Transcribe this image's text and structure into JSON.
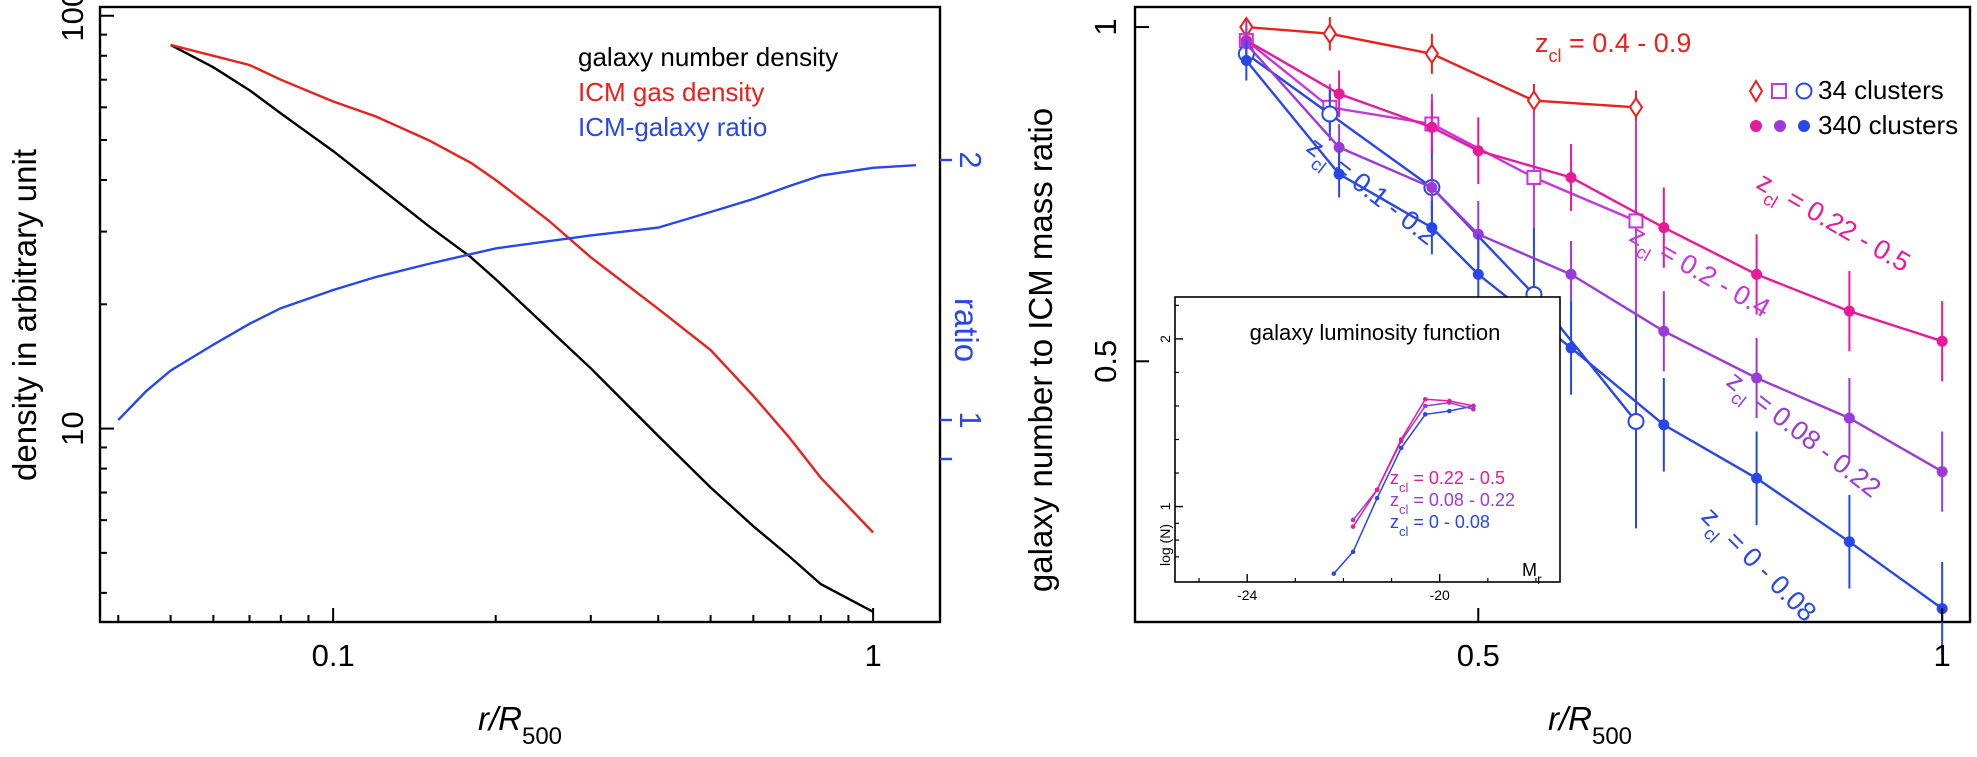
{
  "colors": {
    "black": "#000000",
    "red": "#e8211d",
    "blue": "#2747e8",
    "magenta": "#e8199a",
    "purple": "#9b3ad8",
    "violet": "#c336e0"
  },
  "chart_data": [
    {
      "type": "line",
      "xscale": "log",
      "yscale": "log",
      "xlim": [
        0.037,
        1.33
      ],
      "ylim": [
        3.4,
        105
      ],
      "xlabel": "r/R500",
      "ylabel": "density in arbitrary unit",
      "x_ticks": [
        0.1,
        1
      ],
      "x_tick_labels": [
        "0.1",
        "1"
      ],
      "y_ticks": [
        10,
        100
      ],
      "y_tick_labels": [
        "10",
        "100"
      ],
      "right_axis": {
        "label": "ratio",
        "color": "#2747e8",
        "ticks": [
          1,
          2
        ],
        "tick_labels": [
          "1",
          "2"
        ],
        "note": "ratio axis ticks at 1 and 2 (plus an unlabeled tick below 1)"
      },
      "legend_position": "top-right",
      "series": [
        {
          "name": "galaxy number density",
          "color": "#000000",
          "axis": "left",
          "x": [
            0.05,
            0.06,
            0.07,
            0.08,
            0.1,
            0.12,
            0.15,
            0.18,
            0.2,
            0.25,
            0.3,
            0.4,
            0.5,
            0.6,
            0.7,
            0.8,
            1.0
          ],
          "y": [
            85,
            75,
            66,
            58,
            47,
            39,
            31,
            26,
            23,
            17.5,
            14,
            9.6,
            7.2,
            5.8,
            4.9,
            4.2,
            3.6
          ]
        },
        {
          "name": "ICM gas density",
          "color": "#e8211d",
          "axis": "left",
          "x": [
            0.05,
            0.06,
            0.07,
            0.08,
            0.1,
            0.12,
            0.15,
            0.18,
            0.2,
            0.25,
            0.3,
            0.4,
            0.5,
            0.6,
            0.7,
            0.8,
            1.0
          ],
          "y": [
            85,
            80,
            76,
            70,
            62,
            57,
            50,
            44,
            40,
            32,
            26,
            19.5,
            15.5,
            12,
            9.5,
            7.6,
            5.6
          ]
        },
        {
          "name": "ICM-galaxy ratio",
          "color": "#2747e8",
          "axis": "right",
          "x": [
            0.04,
            0.045,
            0.05,
            0.06,
            0.07,
            0.08,
            0.1,
            0.12,
            0.15,
            0.2,
            0.3,
            0.4,
            0.5,
            0.6,
            0.7,
            0.8,
            1.0,
            1.2
          ],
          "y": [
            1.0,
            1.11,
            1.19,
            1.29,
            1.37,
            1.43,
            1.5,
            1.55,
            1.6,
            1.66,
            1.71,
            1.74,
            1.8,
            1.85,
            1.9,
            1.94,
            1.97,
            1.98
          ]
        }
      ]
    },
    {
      "type": "line",
      "xlabel": "r/R500",
      "ylabel": "galaxy number to ICM mass ratio",
      "xlim": [
        0.13,
        1.03
      ],
      "ylim": [
        0.11,
        1.03
      ],
      "x_ticks": [
        0.5,
        1
      ],
      "x_tick_labels": [
        "0.5",
        "1"
      ],
      "y_ticks": [
        0.5,
        1
      ],
      "y_tick_labels": [
        "0.5",
        "1"
      ],
      "legend_position": "top-right",
      "legend": [
        {
          "symbols": "open",
          "label": "34 clusters"
        },
        {
          "symbols": "filled",
          "label": "340 clusters"
        }
      ],
      "series": [
        {
          "name": "z_cl = 0.4 - 0.9",
          "label_main": "z",
          "label_sub": "cl",
          "label_rest": " = 0.4 - 0.9",
          "color": "#e8211d",
          "marker": "diamond-open",
          "x": [
            0.25,
            0.34,
            0.45,
            0.56,
            0.67
          ],
          "y": [
            1.0,
            0.99,
            0.96,
            0.89,
            0.88
          ],
          "err": [
            0.0,
            0.025,
            0.03,
            0.025,
            0.025
          ]
        },
        {
          "name": "z_cl = 0.2 - 0.4",
          "label_main": "z",
          "label_sub": "cl",
          "label_rest": " = 0.2 - 0.4",
          "color": "#c336e0",
          "marker": "square-open",
          "x": [
            0.25,
            0.34,
            0.45,
            0.56,
            0.67
          ],
          "y": [
            0.98,
            0.88,
            0.855,
            0.775,
            0.71
          ],
          "err": [
            0.0,
            0.035,
            0.045,
            0.1,
            0.15
          ]
        },
        {
          "name": "z_cl = 0.1 - 0.2",
          "label_main": "z",
          "label_sub": "cl",
          "label_rest": " = 0.1 - 0.2",
          "color": "#2747e8",
          "marker": "circle-open",
          "x": [
            0.25,
            0.34,
            0.45,
            0.56,
            0.67
          ],
          "y": [
            0.96,
            0.87,
            0.76,
            0.6,
            0.41
          ],
          "err": [
            0.0,
            0.04,
            0.06,
            0.1,
            0.16
          ]
        },
        {
          "name": "z_cl = 0.22 - 0.5",
          "label_main": "z",
          "label_sub": "cl",
          "label_rest": " = 0.22 - 0.5",
          "color": "#e8199a",
          "marker": "circle-filled",
          "x": [
            0.25,
            0.35,
            0.45,
            0.5,
            0.6,
            0.7,
            0.8,
            0.9,
            1.0
          ],
          "y": [
            0.98,
            0.9,
            0.85,
            0.815,
            0.775,
            0.7,
            0.63,
            0.575,
            0.53
          ],
          "err": [
            0.03,
            0.035,
            0.04,
            0.05,
            0.05,
            0.06,
            0.06,
            0.06,
            0.06
          ]
        },
        {
          "name": "z_cl = 0.08 - 0.22",
          "label_main": "z",
          "label_sub": "cl",
          "label_rest": " = 0.08 - 0.22",
          "color": "#9b3ad8",
          "marker": "circle-filled",
          "x": [
            0.25,
            0.35,
            0.45,
            0.5,
            0.6,
            0.7,
            0.8,
            0.9,
            1.0
          ],
          "y": [
            0.975,
            0.82,
            0.76,
            0.69,
            0.63,
            0.545,
            0.475,
            0.415,
            0.335
          ],
          "err": [
            0.03,
            0.035,
            0.04,
            0.05,
            0.05,
            0.06,
            0.06,
            0.06,
            0.06
          ]
        },
        {
          "name": "z_cl = 0 - 0.08",
          "label_main": "z",
          "label_sub": "cl",
          "label_rest": " = 0 - 0.08",
          "color": "#2747e8",
          "marker": "circle-filled",
          "x": [
            0.25,
            0.35,
            0.45,
            0.5,
            0.6,
            0.7,
            0.8,
            0.9,
            1.0
          ],
          "y": [
            0.95,
            0.78,
            0.7,
            0.63,
            0.52,
            0.405,
            0.325,
            0.23,
            0.13
          ],
          "err": [
            0.03,
            0.035,
            0.04,
            0.06,
            0.07,
            0.07,
            0.07,
            0.07,
            0.07
          ]
        }
      ],
      "inset": {
        "title": "galaxy luminosity function",
        "xlabel_main": "M",
        "xlabel_sub": "r",
        "ylabel": "log (N)",
        "xlim": [
          -25.5,
          -17.5
        ],
        "ylim": [
          0.55,
          2.25
        ],
        "x_ticks": [
          -24,
          -20
        ],
        "x_tick_labels": [
          "-24",
          "-20"
        ],
        "y_ticks": [
          1,
          2
        ],
        "y_tick_labels": [
          "1",
          "2"
        ],
        "legend": [
          {
            "label_main": "z",
            "label_sub": "cl",
            "label_rest": " = 0.22 - 0.5",
            "color": "#e8199a"
          },
          {
            "label_main": "z",
            "label_sub": "cl",
            "label_rest": " = 0.08 - 0.22",
            "color": "#9b3ad8"
          },
          {
            "label_main": "z",
            "label_sub": "cl",
            "label_rest": " = 0 - 0.08",
            "color": "#2747e8"
          }
        ],
        "series": [
          {
            "color": "#2747e8",
            "x": [
              -22.2,
              -21.8,
              -21.3,
              -20.8,
              -20.3,
              -19.8,
              -19.3
            ],
            "y": [
              0.6,
              0.73,
              1.05,
              1.35,
              1.55,
              1.57,
              1.6
            ]
          },
          {
            "color": "#9b3ad8",
            "x": [
              -21.8,
              -21.3,
              -20.8,
              -20.3,
              -19.8,
              -19.3
            ],
            "y": [
              0.92,
              1.1,
              1.39,
              1.6,
              1.62,
              1.58
            ]
          },
          {
            "color": "#e8199a",
            "x": [
              -21.8,
              -21.3,
              -20.8,
              -20.3,
              -19.8,
              -19.3
            ],
            "y": [
              0.88,
              1.1,
              1.4,
              1.64,
              1.63,
              1.6
            ]
          }
        ]
      }
    }
  ]
}
